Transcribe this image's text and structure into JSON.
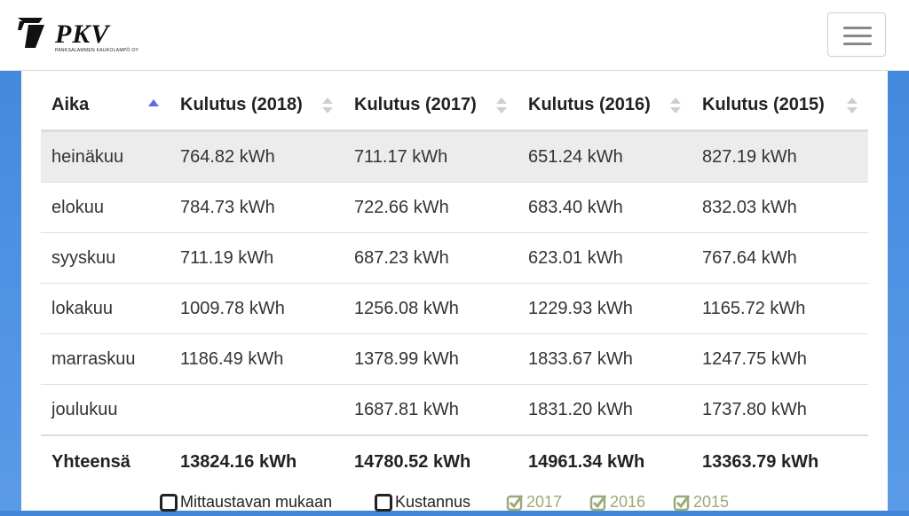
{
  "header": {
    "logo_text": "PKV",
    "logo_subtext": "PANKSALAMMEN KAUKOLAMPÖ OY"
  },
  "table": {
    "columns": [
      "Aika",
      "Kulutus (2018)",
      "Kulutus (2017)",
      "Kulutus (2016)",
      "Kulutus (2015)"
    ],
    "rows": [
      [
        "heinäkuu",
        "764.82 kWh",
        "711.17 kWh",
        "651.24 kWh",
        "827.19 kWh"
      ],
      [
        "elokuu",
        "784.73 kWh",
        "722.66 kWh",
        "683.40 kWh",
        "832.03 kWh"
      ],
      [
        "syyskuu",
        "711.19 kWh",
        "687.23 kWh",
        "623.01 kWh",
        "767.64 kWh"
      ],
      [
        "lokakuu",
        "1009.78 kWh",
        "1256.08 kWh",
        "1229.93 kWh",
        "1165.72 kWh"
      ],
      [
        "marraskuu",
        "1186.49 kWh",
        "1378.99 kWh",
        "1833.67 kWh",
        "1247.75 kWh"
      ],
      [
        "joulukuu",
        "",
        "1687.81 kWh",
        "1831.20 kWh",
        "1737.80 kWh"
      ]
    ],
    "total": [
      "Yhteensä",
      "13824.16 kWh",
      "14780.52 kWh",
      "14961.34 kWh",
      "13363.79 kWh"
    ]
  },
  "legend": {
    "mittaustavan": "Mittaustavan mukaan",
    "kustannus": "Kustannus",
    "y2017": "2017",
    "y2016": "2016",
    "y2015": "2015"
  },
  "colors": {
    "background": "#4a90e2",
    "sort_active": "#5a6ee0",
    "sort_inactive": "#cfcfcf",
    "legend_checked": "#9aaa77"
  },
  "icons": {
    "menu": "hamburger-icon",
    "sort_active": "sort-asc-icon",
    "sort_inactive": "sort-both-icon",
    "checkbox_empty": "checkbox-unchecked-icon",
    "checkbox_checked": "checkbox-checked-icon"
  }
}
